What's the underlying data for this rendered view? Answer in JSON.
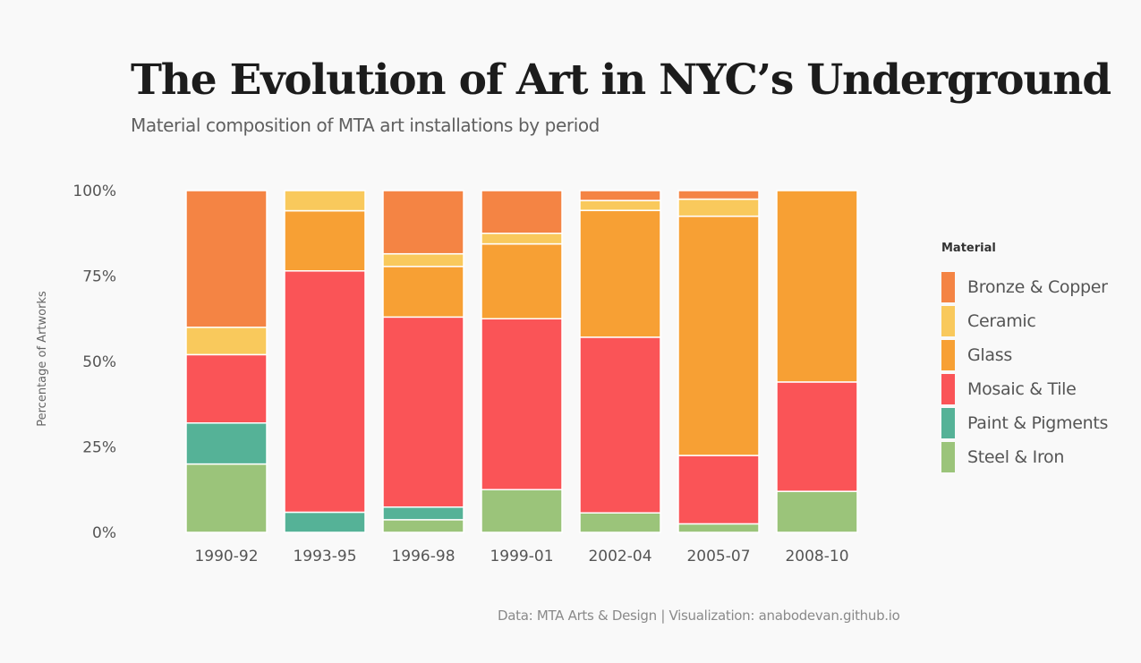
{
  "title": "The Evolution of Art in NYC’s Underground",
  "subtitle": "Material composition of MTA art installations by period",
  "footer": "Data: MTA Arts & Design | Visualization:  anabodevan.github.io",
  "chart_data": {
    "type": "bar",
    "stacked": true,
    "normalized": true,
    "title": "The Evolution of Art in NYC’s Underground",
    "xlabel": "",
    "ylabel": "Percentage of Artworks",
    "ylim": [
      0,
      100
    ],
    "yticks": [
      "0%",
      "25%",
      "50%",
      "75%",
      "100%"
    ],
    "grid": false,
    "legend_title": "Material",
    "legend_position": "right",
    "categories": [
      "1990-92",
      "1993-95",
      "1996-98",
      "1999-01",
      "2002-04",
      "2005-07",
      "2008-10"
    ],
    "series": [
      {
        "name": "Steel & Iron",
        "color": "#9bc47a",
        "values": [
          20.0,
          0,
          3.7,
          12.5,
          5.7,
          2.5,
          12.0
        ]
      },
      {
        "name": "Paint & Pigments",
        "color": "#55b297",
        "values": [
          12.0,
          5.9,
          3.7,
          0,
          0,
          0,
          0
        ]
      },
      {
        "name": "Mosaic & Tile",
        "color": "#fa5457",
        "values": [
          20.0,
          70.6,
          55.6,
          50.0,
          51.4,
          20.0,
          32.0
        ]
      },
      {
        "name": "Glass",
        "color": "#f7a034",
        "values": [
          0,
          17.6,
          14.8,
          21.9,
          37.1,
          70.0,
          56.0
        ]
      },
      {
        "name": "Ceramic",
        "color": "#f9c95c",
        "values": [
          8.0,
          5.9,
          3.7,
          3.1,
          2.9,
          5.0,
          0
        ]
      },
      {
        "name": "Bronze & Copper",
        "color": "#f48444",
        "values": [
          40.0,
          0,
          18.5,
          12.5,
          2.9,
          2.5,
          0
        ]
      }
    ],
    "legend_order": [
      "Bronze & Copper",
      "Ceramic",
      "Glass",
      "Mosaic & Tile",
      "Paint & Pigments",
      "Steel & Iron"
    ]
  }
}
